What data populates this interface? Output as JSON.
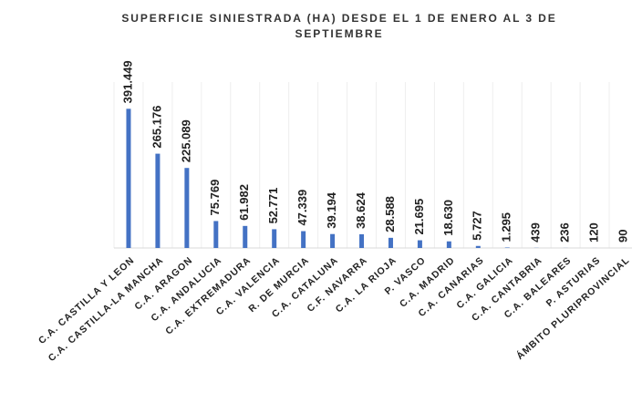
{
  "chart_data": {
    "type": "bar",
    "title": "SUPERFICIE SINIESTRADA (HA) DESDE EL 1 DE ENERO AL 3 DE SEPTIEMBRE",
    "categories": [
      "C.A. CASTILLA Y LEON",
      "C.A. CASTILLA-LA MANCHA",
      "C.A. ARAGON",
      "C.A. ANDALUCIA",
      "C.A. EXTREMADURA",
      "C.A. VALENCIA",
      "R. DE MURCIA",
      "C.A. CATALUNA",
      "C.F. NAVARRA",
      "C.A. LA RIOJA",
      "P. VASCO",
      "C.A. MADRID",
      "C.A. CANARIAS",
      "C.A. GALICIA",
      "C.A. CANTABRIA",
      "C.A. BALEARES",
      "P. ASTURIAS",
      "ÁMBITO PLURIPROVINCIAL"
    ],
    "values": [
      391449,
      265176,
      225089,
      75769,
      61982,
      52771,
      47339,
      39194,
      38624,
      28588,
      21695,
      18630,
      5727,
      1295,
      439,
      236,
      120,
      90
    ],
    "value_labels": [
      "391.449",
      "265.176",
      "225.089",
      "75.769",
      "61.982",
      "52.771",
      "47.339",
      "39.194",
      "38.624",
      "28.588",
      "21.695",
      "18.630",
      "5.727",
      "1.295",
      "439",
      "236",
      "120",
      "90"
    ],
    "color": "#4472c4",
    "ylim": [
      0,
      400000
    ]
  }
}
